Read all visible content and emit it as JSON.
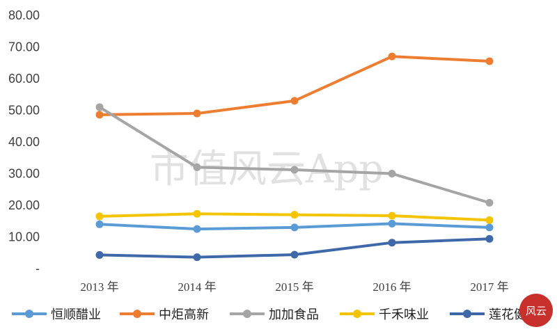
{
  "chart_data": {
    "type": "line",
    "categories": [
      "2013 年",
      "2014 年",
      "2015 年",
      "2016 年",
      "2017 年"
    ],
    "y_ticks": [
      "-",
      "10.00",
      "20.00",
      "30.00",
      "40.00",
      "50.00",
      "60.00",
      "70.00",
      "80.00"
    ],
    "ylim": [
      0,
      80
    ],
    "grid": false,
    "legend_position": "bottom",
    "series": [
      {
        "name": "恒顺醋业",
        "color": "#5b9bd5",
        "values": [
          14.0,
          12.5,
          13.0,
          14.2,
          13.0
        ]
      },
      {
        "name": "中炬高新",
        "color": "#ed7d31",
        "values": [
          48.6,
          49.0,
          53.0,
          67.0,
          65.5
        ]
      },
      {
        "name": "加加食品",
        "color": "#a5a5a5",
        "values": [
          51.0,
          32.0,
          31.2,
          30.0,
          20.8
        ]
      },
      {
        "name": "千禾味业",
        "color": "#f5c400",
        "values": [
          16.5,
          17.3,
          17.0,
          16.7,
          15.3
        ]
      },
      {
        "name": "莲花健",
        "color": "#3f68a8",
        "values": [
          4.3,
          3.6,
          4.4,
          8.2,
          9.4
        ]
      }
    ]
  },
  "watermark": {
    "text": "市值风云App"
  },
  "logo": {
    "text": "风云"
  }
}
